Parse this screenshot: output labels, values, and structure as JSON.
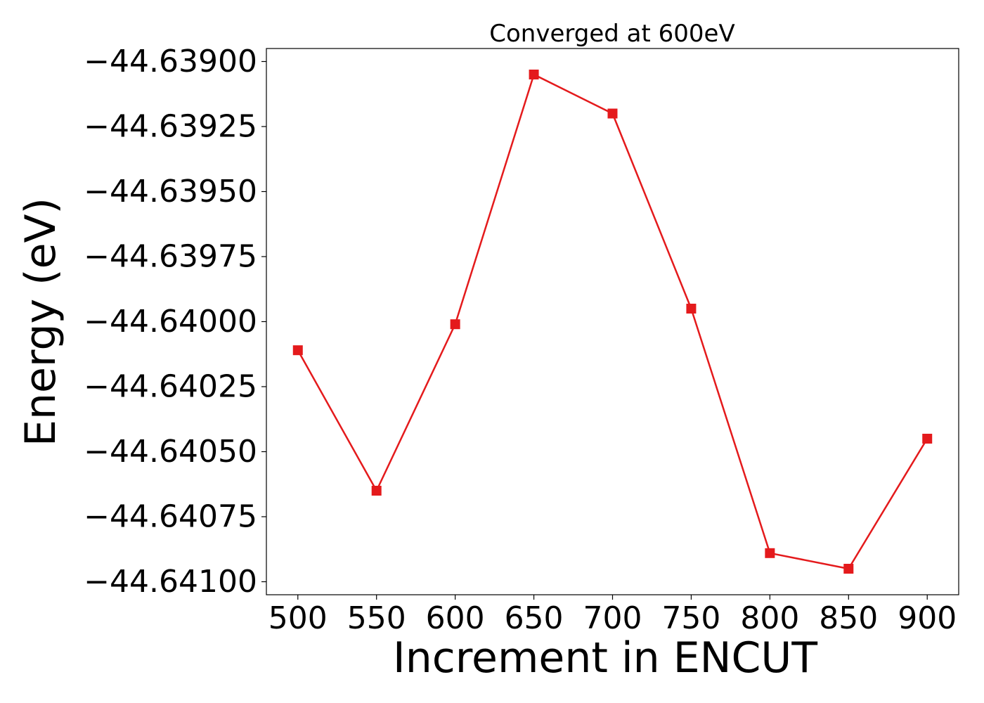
{
  "chart_data": {
    "type": "line",
    "title": "Converged at 600eV",
    "xlabel": "Increment in ENCUT",
    "ylabel": "Energy (eV)",
    "x": [
      500,
      550,
      600,
      650,
      700,
      750,
      800,
      850,
      900
    ],
    "series": [
      {
        "values": [
          -44.64011,
          -44.64065,
          -44.64001,
          -44.63905,
          -44.6392,
          -44.63995,
          -44.64089,
          -44.64095,
          -44.64045
        ],
        "color": "#e41a1c",
        "marker": "square"
      }
    ],
    "xticks": [
      "500",
      "550",
      "600",
      "650",
      "700",
      "750",
      "800",
      "850",
      "900"
    ],
    "yticks": [
      "−44.63900",
      "−44.63925",
      "−44.63950",
      "−44.63975",
      "−44.64000",
      "−44.64025",
      "−44.64050",
      "−44.64075",
      "−44.64100"
    ],
    "xtick_values": [
      500,
      550,
      600,
      650,
      700,
      750,
      800,
      850,
      900
    ],
    "ytick_values": [
      -44.639,
      -44.63925,
      -44.6395,
      -44.63975,
      -44.64,
      -44.64025,
      -44.6405,
      -44.64075,
      -44.641
    ],
    "xlim": [
      480,
      920
    ],
    "ylim": [
      -44.64105,
      -44.63895
    ],
    "grid": false,
    "legend": false
  }
}
